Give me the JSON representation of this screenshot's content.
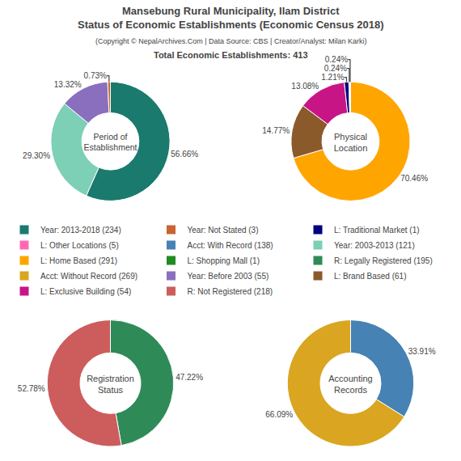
{
  "title": "Mansebung Rural Municipality, Ilam District\nStatus of Economic Establishments (Economic Census 2018)",
  "subtitle": "(Copyright © NepalArchives.Com | Data Source: CBS | Creator/Analyst: Milan Karki)",
  "annotations": [
    "Total Economic Establishments: 413"
  ],
  "chart_data": [
    {
      "type": "pie",
      "title": "Period of\nEstablishment",
      "values": [
        56.66,
        29.3,
        13.32,
        0.73
      ],
      "value_labels": [
        "56.66%",
        "29.30%",
        "13.32%",
        "0.73%"
      ],
      "colors": [
        "#1a7a6e",
        "#7dcfb6",
        "#8b6fbf",
        "#c86432"
      ],
      "data_labels": true
    },
    {
      "type": "pie",
      "title": "Physical\nLocation",
      "values": [
        70.46,
        14.77,
        13.08,
        1.21,
        0.24,
        0.24
      ],
      "value_labels": [
        "70.46%",
        "14.77%",
        "13.08%",
        "1.21%",
        "0.24%",
        "0.24%"
      ],
      "colors": [
        "#FFA500",
        "#8B5A2B",
        "#C71585",
        "#000080",
        "#8B0000",
        "#FFA040"
      ],
      "data_labels": true
    },
    {
      "type": "pie",
      "title": "Registration\nStatus",
      "values": [
        47.22,
        52.78
      ],
      "value_labels": [
        "47.22%",
        "52.78%"
      ],
      "colors": [
        "#2E8B57",
        "#CD5C5C"
      ],
      "data_labels": true
    },
    {
      "type": "pie",
      "title": "Accounting\nRecords",
      "values": [
        33.91,
        66.09
      ],
      "value_labels": [
        "33.91%",
        "66.09%"
      ],
      "colors": [
        "#4682B4",
        "#DAA520"
      ],
      "data_labels": true
    },
    {
      "type": "legend",
      "series": [
        {
          "name": "Year: 2013-2018 (234)",
          "color": "#1a7a6e"
        },
        {
          "name": "Year: Not Stated (3)",
          "color": "#c86432"
        },
        {
          "name": "L: Traditional Market (1)",
          "color": "#000080"
        },
        {
          "name": "L: Other Locations (5)",
          "color": "#FF69B4"
        },
        {
          "name": "Acct: With Record (138)",
          "color": "#4682B4"
        },
        {
          "name": "Year: 2003-2013 (121)",
          "color": "#7dcfb6"
        },
        {
          "name": "L: Home Based (291)",
          "color": "#FFA500"
        },
        {
          "name": "L: Shopping Mall (1)",
          "color": "#228B22"
        },
        {
          "name": "R: Legally Registered (195)",
          "color": "#2E8B57"
        },
        {
          "name": "Acct: Without Record (269)",
          "color": "#DAA520"
        },
        {
          "name": "Year: Before 2003 (55)",
          "color": "#8b6fbf"
        },
        {
          "name": "L: Brand Based (61)",
          "color": "#8B5A2B"
        },
        {
          "name": "L: Exclusive Building (54)",
          "color": "#C71585"
        },
        {
          "name": "R: Not Registered (218)",
          "color": "#CD5C5C"
        }
      ]
    }
  ]
}
